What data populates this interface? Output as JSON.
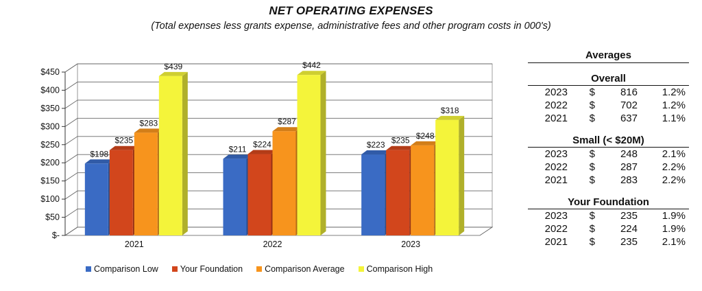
{
  "header": {
    "title": "NET OPERATING EXPENSES",
    "subtitle": "(Total expenses less grants expense, administrative fees and other program costs in 000's)"
  },
  "chart_data": {
    "type": "bar",
    "title": "NET OPERATING EXPENSES",
    "categories": [
      "2021",
      "2022",
      "2023"
    ],
    "series": [
      {
        "name": "Comparison Low",
        "color": "#3a6bc4",
        "values": [
          198,
          211,
          223
        ],
        "labels": [
          "$198",
          "$211",
          "$223"
        ]
      },
      {
        "name": "Your Foundation",
        "color": "#d2461c",
        "values": [
          235,
          224,
          235
        ],
        "labels": [
          "$235",
          "$224",
          "$235"
        ]
      },
      {
        "name": "Comparison Average",
        "color": "#f7941d",
        "values": [
          283,
          287,
          248
        ],
        "labels": [
          "$283",
          "$287",
          "$248"
        ]
      },
      {
        "name": "Comparison High",
        "color": "#f4f43a",
        "values": [
          439,
          442,
          318
        ],
        "labels": [
          "$439",
          "$442",
          "$318"
        ]
      }
    ],
    "yticks": [
      "$-",
      "$50",
      "$100",
      "$150",
      "$200",
      "$250",
      "$300",
      "$350",
      "$400",
      "$450"
    ],
    "ylim": [
      0,
      450
    ],
    "grid": true,
    "legend": "bottom"
  },
  "averages": {
    "heading": "Averages",
    "currency": "$",
    "groups": [
      {
        "title": "Overall",
        "rows": [
          {
            "year": "2023",
            "value": "816",
            "pct": "1.2%"
          },
          {
            "year": "2022",
            "value": "702",
            "pct": "1.2%"
          },
          {
            "year": "2021",
            "value": "637",
            "pct": "1.1%"
          }
        ]
      },
      {
        "title": "Small (< $20M)",
        "rows": [
          {
            "year": "2023",
            "value": "248",
            "pct": "2.1%"
          },
          {
            "year": "2022",
            "value": "287",
            "pct": "2.2%"
          },
          {
            "year": "2021",
            "value": "283",
            "pct": "2.2%"
          }
        ]
      },
      {
        "title": "Your Foundation",
        "rows": [
          {
            "year": "2023",
            "value": "235",
            "pct": "1.9%"
          },
          {
            "year": "2022",
            "value": "224",
            "pct": "1.9%"
          },
          {
            "year": "2021",
            "value": "235",
            "pct": "2.1%"
          }
        ]
      }
    ]
  }
}
